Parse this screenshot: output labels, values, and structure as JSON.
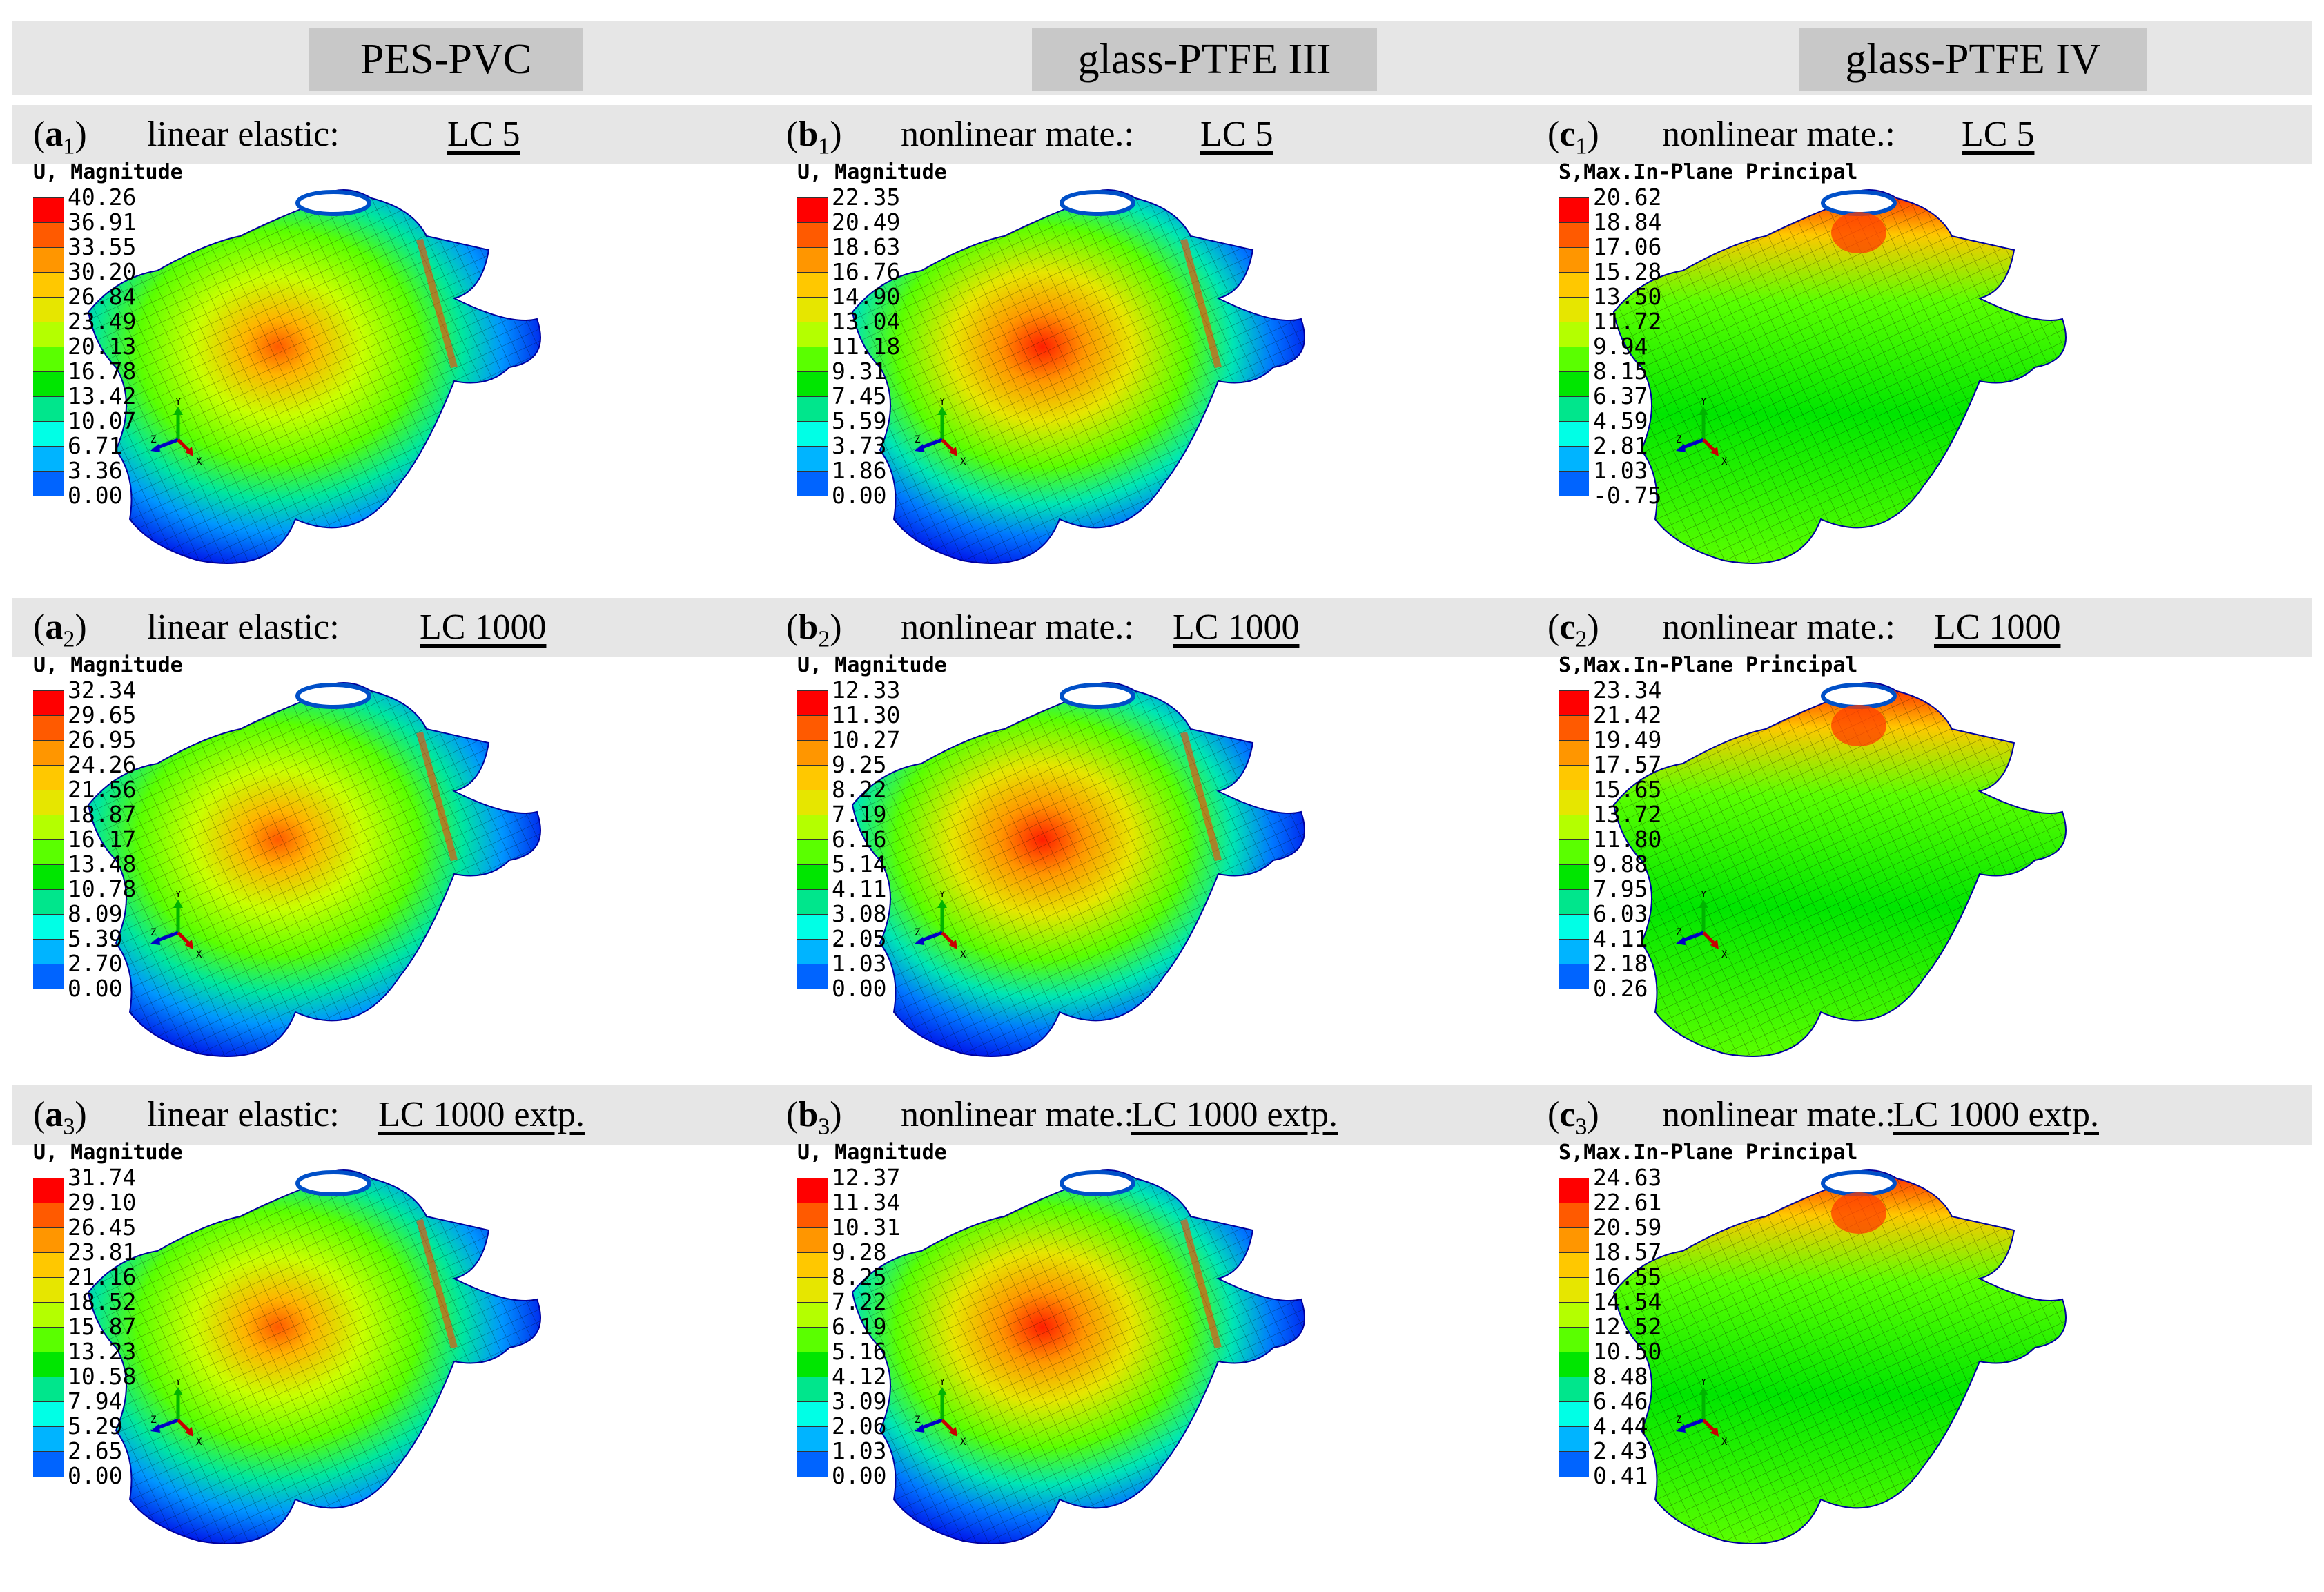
{
  "columns": [
    "PES-PVC",
    "glass-PTFE III",
    "glass-PTFE IV"
  ],
  "rows": [
    [
      {
        "label": "a",
        "sub": "1",
        "method": "linear elastic:",
        "lc": "LC 5",
        "quantity": "U, Magnitude",
        "values": [
          "40.26",
          "36.91",
          "33.55",
          "30.20",
          "26.84",
          "23.49",
          "20.13",
          "16.78",
          "13.42",
          "10.07",
          "6.71",
          "3.36",
          "0.00"
        ]
      },
      {
        "label": "b",
        "sub": "1",
        "method": "nonlinear mate.:",
        "lc": "LC 5",
        "quantity": "U, Magnitude",
        "values": [
          "22.35",
          "20.49",
          "18.63",
          "16.76",
          "14.90",
          "13.04",
          "11.18",
          "9.31",
          "7.45",
          "5.59",
          "3.73",
          "1.86",
          "0.00"
        ]
      },
      {
        "label": "c",
        "sub": "1",
        "method": "nonlinear mate.:",
        "lc": "LC 5",
        "quantity": "S,Max.In-Plane Principal",
        "values": [
          "20.62",
          "18.84",
          "17.06",
          "15.28",
          "13.50",
          "11.72",
          "9.94",
          "8.15",
          "6.37",
          "4.59",
          "2.81",
          "1.03",
          "-0.75"
        ]
      }
    ],
    [
      {
        "label": "a",
        "sub": "2",
        "method": "linear elastic:",
        "lc": "LC 1000",
        "quantity": "U, Magnitude",
        "values": [
          "32.34",
          "29.65",
          "26.95",
          "24.26",
          "21.56",
          "18.87",
          "16.17",
          "13.48",
          "10.78",
          "8.09",
          "5.39",
          "2.70",
          "0.00"
        ]
      },
      {
        "label": "b",
        "sub": "2",
        "method": "nonlinear mate.:",
        "lc": "LC 1000",
        "quantity": "U, Magnitude",
        "values": [
          "12.33",
          "11.30",
          "10.27",
          "9.25",
          "8.22",
          "7.19",
          "6.16",
          "5.14",
          "4.11",
          "3.08",
          "2.05",
          "1.03",
          "0.00"
        ]
      },
      {
        "label": "c",
        "sub": "2",
        "method": "nonlinear mate.:",
        "lc": "LC 1000",
        "quantity": "S,Max.In-Plane Principal",
        "values": [
          "23.34",
          "21.42",
          "19.49",
          "17.57",
          "15.65",
          "13.72",
          "11.80",
          "9.88",
          "7.95",
          "6.03",
          "4.11",
          "2.18",
          "0.26"
        ]
      }
    ],
    [
      {
        "label": "a",
        "sub": "3",
        "method": "linear elastic:",
        "lc": "LC 1000 extp.",
        "quantity": "U, Magnitude",
        "values": [
          "31.74",
          "29.10",
          "26.45",
          "23.81",
          "21.16",
          "18.52",
          "15.87",
          "13.23",
          "10.58",
          "7.94",
          "5.29",
          "2.65",
          "0.00"
        ]
      },
      {
        "label": "b",
        "sub": "3",
        "method": "nonlinear mate.:",
        "lc": "LC 1000 extp.",
        "quantity": "U, Magnitude",
        "values": [
          "12.37",
          "11.34",
          "10.31",
          "9.28",
          "8.25",
          "7.22",
          "6.19",
          "5.16",
          "4.12",
          "3.09",
          "2.06",
          "1.03",
          "0.00"
        ]
      },
      {
        "label": "c",
        "sub": "3",
        "method": "nonlinear mate.:",
        "lc": "LC 1000 extp.",
        "quantity": "S,Max.In-Plane Principal",
        "values": [
          "24.63",
          "22.61",
          "20.59",
          "18.57",
          "16.55",
          "14.54",
          "12.52",
          "10.50",
          "8.48",
          "6.46",
          "4.44",
          "2.43",
          "0.41"
        ]
      }
    ]
  ],
  "colormap": [
    "#ff0000",
    "#ff5a00",
    "#ff9600",
    "#ffc800",
    "#e6e600",
    "#b4ff00",
    "#5aff00",
    "#00e600",
    "#00e68c",
    "#00ffe6",
    "#00b4ff",
    "#0064ff",
    "#0000ff"
  ],
  "axis_labels": {
    "y": "Y",
    "z": "Z",
    "x": "X"
  }
}
